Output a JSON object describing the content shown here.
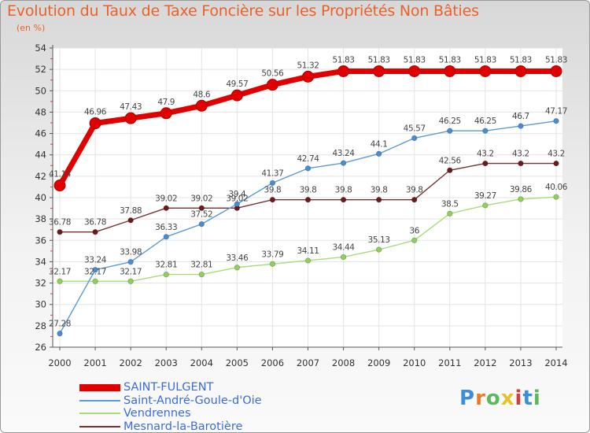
{
  "header": {
    "title": "Evolution du Taux de Taxe Foncière sur les Propriétés Non Bâties",
    "unit": "(en %)"
  },
  "logo": {
    "text": "Proxiti",
    "letter_colors": [
      "#3b8fd8",
      "#e87a2a",
      "#5cb85c",
      "#e8c22a",
      "#d83b3b",
      "#3b8fd8",
      "#5cb85c"
    ]
  },
  "chart_data": {
    "type": "line",
    "title": "Evolution du Taux de Taxe Foncière sur les Propriétés Non Bâties",
    "ylabel": "(en %)",
    "xlabel": "",
    "ylim": [
      26,
      54
    ],
    "yticks": [
      26,
      28,
      30,
      32,
      34,
      36,
      38,
      40,
      42,
      44,
      46,
      48,
      50,
      52,
      54
    ],
    "grid": true,
    "legend_position": "bottom-left",
    "categories": [
      "2000",
      "2001",
      "2002",
      "2003",
      "2004",
      "2005",
      "2006",
      "2007",
      "2008",
      "2009",
      "2010",
      "2011",
      "2012",
      "2013",
      "2014"
    ],
    "series": [
      {
        "name": "SAINT-FULGENT",
        "color": "#e00000",
        "marker_color": "#e00000",
        "values": [
          41.14,
          46.96,
          47.43,
          47.9,
          48.6,
          49.57,
          50.56,
          51.32,
          51.83,
          51.83,
          51.83,
          51.83,
          51.83,
          51.83,
          51.83
        ],
        "labels": [
          "41.14",
          "46.96",
          "47.43",
          "47.9",
          "48.6",
          "49.57",
          "50.56",
          "51.32",
          "51.83",
          "51.83",
          "51.83",
          "51.83",
          "51.83",
          "51.83",
          "51.83"
        ]
      },
      {
        "name": "Saint-André-Goule-d'Oie",
        "color": "#5b9bd5",
        "marker_color": "#4a8cd0",
        "values": [
          27.28,
          33.24,
          33.98,
          36.33,
          37.52,
          39.4,
          41.37,
          42.74,
          43.24,
          44.1,
          45.57,
          46.25,
          46.25,
          46.7,
          47.17
        ],
        "labels": [
          "27.28",
          "33.24",
          "33.98",
          "36.33",
          "37.52",
          "39.4",
          "41.37",
          "42.74",
          "43.24",
          "44.1",
          "45.57",
          "46.25",
          "46.25",
          "46.7",
          "47.17"
        ]
      },
      {
        "name": "Vendrennes",
        "color": "#a6dc7a",
        "marker_color": "#8fd05a",
        "values": [
          32.17,
          32.17,
          32.17,
          32.81,
          32.81,
          33.46,
          33.79,
          34.11,
          34.44,
          35.13,
          36.0,
          38.5,
          39.27,
          39.86,
          40.06
        ],
        "labels": [
          "32.17",
          "32.17",
          "32.17",
          "32.81",
          "32.81",
          "33.46",
          "33.79",
          "34.11",
          "34.44",
          "35.13",
          "36",
          "38.5",
          "39.27",
          "39.86",
          "40.06"
        ]
      },
      {
        "name": "Mesnard-la-Barotière",
        "color": "#7a3030",
        "marker_color": "#6a1a1a",
        "values": [
          36.78,
          36.78,
          37.88,
          39.02,
          39.02,
          39.02,
          39.8,
          39.8,
          39.8,
          39.8,
          39.8,
          42.56,
          43.2,
          43.2,
          43.2
        ],
        "labels": [
          "36.78",
          "36.78",
          "37.88",
          "39.02",
          "39.02",
          "39.02",
          "39.8",
          "39.8",
          "39.8",
          "39.8",
          "39.8",
          "42.56",
          "43.2",
          "43.2",
          "43.2"
        ]
      }
    ]
  }
}
